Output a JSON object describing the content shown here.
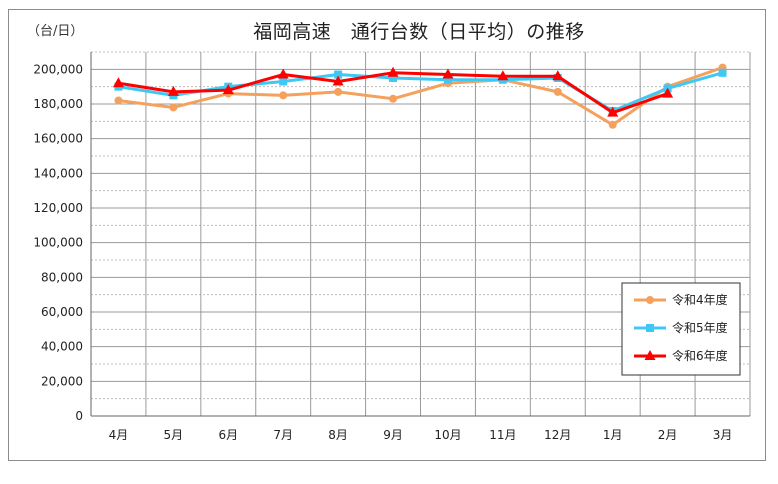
{
  "chart_data": {
    "type": "line",
    "title": "福岡高速　通行台数（日平均）の推移",
    "unit_label": "（台/日）",
    "categories": [
      "4月",
      "5月",
      "6月",
      "7月",
      "8月",
      "9月",
      "10月",
      "11月",
      "12月",
      "1月",
      "2月",
      "3月"
    ],
    "ylim": [
      0,
      210000
    ],
    "y_ticks": [
      0,
      20000,
      40000,
      60000,
      80000,
      100000,
      120000,
      140000,
      160000,
      180000,
      200000
    ],
    "y_tick_labels": [
      "0",
      "20,000",
      "40,000",
      "60,000",
      "80,000",
      "100,000",
      "120,000",
      "140,000",
      "160,000",
      "180,000",
      "200,000"
    ],
    "grid": true,
    "legend_position": "bottom-right",
    "series": [
      {
        "name": "令和4年度",
        "color": "#f4a15d",
        "marker": "circle",
        "values": [
          182000,
          178000,
          186000,
          185000,
          187000,
          183000,
          192000,
          194000,
          187000,
          168000,
          190000,
          201000
        ]
      },
      {
        "name": "令和5年度",
        "color": "#3fc8f4",
        "marker": "square",
        "values": [
          190000,
          185000,
          190000,
          193000,
          197000,
          195000,
          194000,
          194000,
          195000,
          176000,
          189000,
          198000
        ]
      },
      {
        "name": "令和6年度",
        "color": "#ff0000",
        "marker": "triangle",
        "values": [
          192000,
          187000,
          188000,
          197000,
          193000,
          198000,
          197000,
          196000,
          196000,
          175000,
          186000,
          null
        ]
      }
    ]
  }
}
